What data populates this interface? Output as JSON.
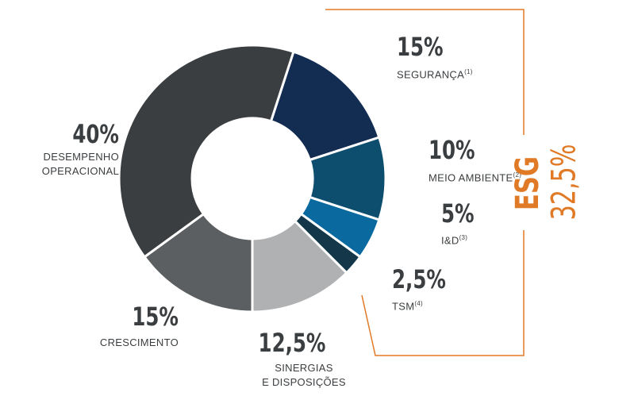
{
  "chart_data": {
    "type": "donut",
    "categories": [
      "SEGURANÇA",
      "MEIO AMBIENTE",
      "I&D",
      "TSM",
      "SINERGIAS\nE DISPOSIÇÕES",
      "CRESCIMENTO",
      "DESEMPENHO\nOPERACIONAL"
    ],
    "footnotes": [
      "(1)",
      "(2)",
      "(3)",
      "(4)",
      null,
      null,
      null
    ],
    "values": [
      15,
      10,
      5,
      2.5,
      12.5,
      15,
      40
    ],
    "value_labels": [
      "15%",
      "10%",
      "5%",
      "2,5%",
      "12,5%",
      "15%",
      "40%"
    ],
    "colors": [
      "#132c52",
      "#0d4d6e",
      "#0a6aa0",
      "#14384a",
      "#b0b1b3",
      "#5c5f61",
      "#3b3e40"
    ],
    "annotation": {
      "label": "ESG",
      "value": 32.5,
      "value_label": "32,5%",
      "color": "#e07a26"
    }
  }
}
